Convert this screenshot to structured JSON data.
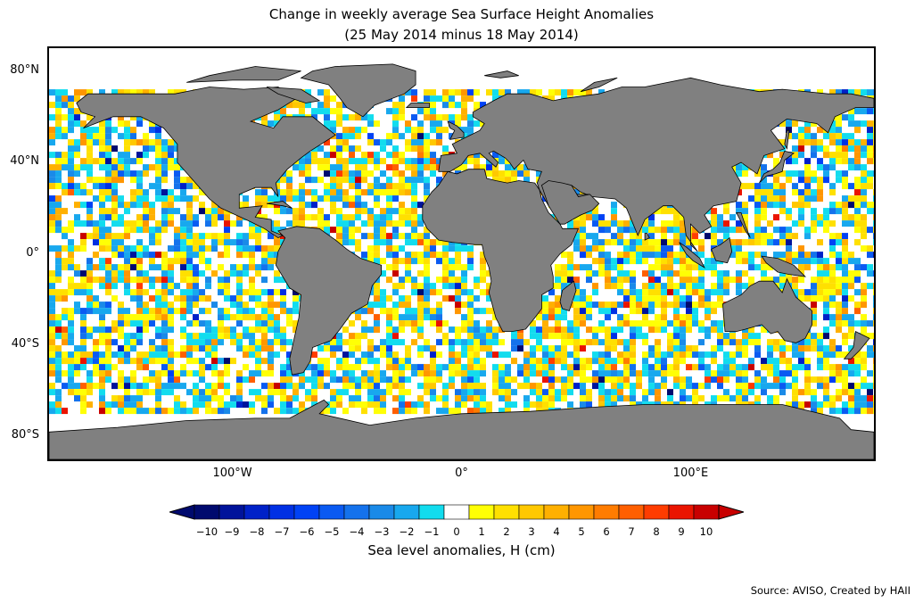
{
  "title_line1": "Change in weekly average Sea Surface Height Anomalies",
  "title_line2": "(25 May 2014 minus 18 May 2014)",
  "lat_ticks": [
    {
      "label": "80°N",
      "lat": 80
    },
    {
      "label": "40°N",
      "lat": 40
    },
    {
      "label": "0°",
      "lat": 0
    },
    {
      "label": "40°S",
      "lat": -40
    },
    {
      "label": "80°S",
      "lat": -80
    }
  ],
  "lon_ticks": [
    {
      "label": "100°W",
      "lon": -100
    },
    {
      "label": "0°",
      "lon": 0
    },
    {
      "label": "100°E",
      "lon": 100
    }
  ],
  "map_extent": {
    "lon": [
      -180,
      180
    ],
    "lat": [
      -90,
      90
    ]
  },
  "colorbar": {
    "label": "Sea level anomalies, H (cm)",
    "tick_labels": [
      "−10",
      "−9",
      "−8",
      "−7",
      "−6",
      "−5",
      "−4",
      "−3",
      "−2",
      "−1",
      "0",
      "1",
      "2",
      "3",
      "4",
      "5",
      "6",
      "7",
      "8",
      "9",
      "10"
    ],
    "colors": [
      "#000a6e",
      "#00139b",
      "#0021c8",
      "#0030e4",
      "#0042f5",
      "#0a5af2",
      "#1472ec",
      "#1a8ae8",
      "#18a8ee",
      "#12dcee",
      "#ffffff",
      "#ffff05",
      "#ffe000",
      "#ffc800",
      "#ffb000",
      "#ff9600",
      "#ff7c00",
      "#ff5f00",
      "#ff3c00",
      "#ea1400",
      "#c80000"
    ],
    "extend": "both"
  },
  "land_color": "#808080",
  "source": "Source: AVISO, Created by HAII"
}
